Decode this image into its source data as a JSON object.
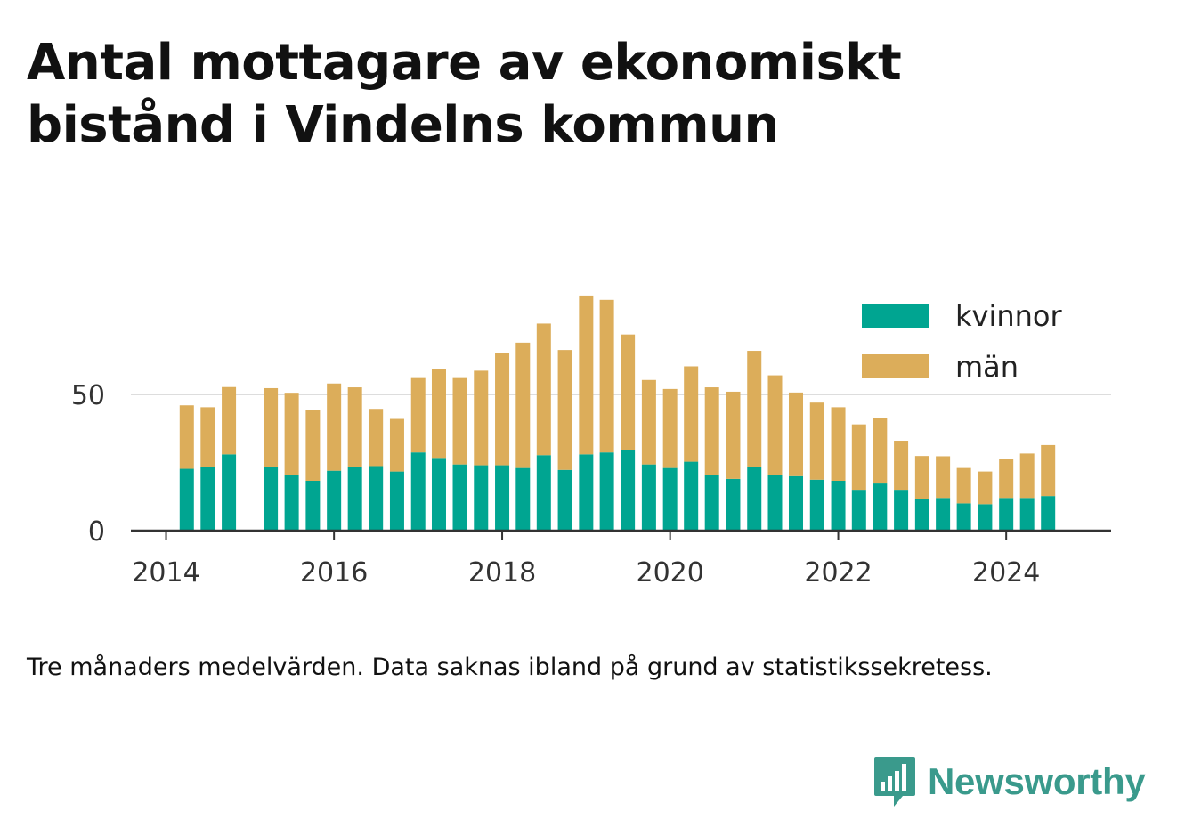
{
  "title": "Antal mottagare av ekonomiskt bistånd i Vindelns kommun",
  "note": "Tre månaders medelvärden. Data saknas ibland på grund av statistikssekretess.",
  "brand": {
    "name": "Newsworthy",
    "logo_icon": "bar-chart-speech-bubble-icon",
    "color": "#3a9a8c"
  },
  "chart_data": {
    "type": "bar",
    "stacked": true,
    "x_ticks": [
      "2014",
      "2016",
      "2018",
      "2020",
      "2022",
      "2024"
    ],
    "y_ticks": [
      0,
      50
    ],
    "ylim": [
      0,
      90
    ],
    "xlim": [
      "2013-08-01",
      "2025-04-01"
    ],
    "grid": true,
    "legend_position": "top-right",
    "x": [
      "2014-04-01",
      "2014-07-01",
      "2014-10-01",
      "2015-04-01",
      "2015-07-01",
      "2015-10-01",
      "2016-01-01",
      "2016-04-01",
      "2016-07-01",
      "2016-10-01",
      "2017-01-01",
      "2017-04-01",
      "2017-07-01",
      "2017-10-01",
      "2018-01-01",
      "2018-04-01",
      "2018-07-01",
      "2018-10-01",
      "2019-01-01",
      "2019-04-01",
      "2019-07-01",
      "2019-10-01",
      "2020-01-01",
      "2020-04-01",
      "2020-07-01",
      "2020-10-01",
      "2021-01-01",
      "2021-04-01",
      "2021-07-01",
      "2021-10-01",
      "2022-01-01",
      "2022-04-01",
      "2022-07-01",
      "2022-10-01",
      "2023-01-01",
      "2023-04-01",
      "2023-07-01",
      "2023-10-01",
      "2024-01-01",
      "2024-04-01",
      "2024-07-01"
    ],
    "series": [
      {
        "name": "kvinnor",
        "color": "#00a591",
        "values": [
          22.7,
          23.3,
          28,
          23.3,
          20.3,
          18.3,
          22,
          23.3,
          23.7,
          21.7,
          28.7,
          26.7,
          24.3,
          24,
          24,
          23,
          27.7,
          22.3,
          28,
          28.7,
          29.7,
          24.3,
          23,
          25.3,
          20.3,
          19,
          23.3,
          20.3,
          20,
          18.7,
          18.3,
          15,
          17.3,
          15,
          11.7,
          12,
          10,
          9.7,
          12,
          12,
          12.7
        ]
      },
      {
        "name": "män",
        "color": "#dcad5a",
        "values": [
          23.3,
          22,
          24.7,
          29,
          30.3,
          26,
          32,
          29.3,
          21,
          19.3,
          27.3,
          32.7,
          31.7,
          34.7,
          41.3,
          46,
          48.3,
          44,
          58.3,
          56,
          42.3,
          31,
          29,
          35,
          32.3,
          32,
          42.7,
          36.7,
          30.7,
          28.3,
          27,
          24,
          24,
          18,
          15.7,
          15.3,
          13,
          12,
          14.3,
          16.3,
          18.7
        ]
      }
    ]
  }
}
